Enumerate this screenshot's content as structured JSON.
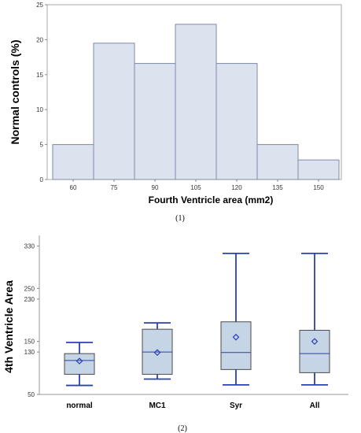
{
  "chart_data": [
    {
      "type": "bar",
      "caption": "(1)",
      "categories": [
        "60",
        "75",
        "90",
        "105",
        "120",
        "135",
        "150"
      ],
      "values": [
        5,
        19.5,
        16.6,
        22.2,
        16.6,
        5,
        2.8
      ],
      "xlabel": "Fourth Ventricle area (mm2)",
      "ylabel": "Normal controls  (%)",
      "ylim": [
        0,
        25
      ],
      "yticks": [
        "0",
        "5",
        "10",
        "15",
        "20",
        "25"
      ],
      "colors": {
        "fill": "#dde3ee",
        "stroke": "#7d8aa6",
        "plot_border": "#aaaaaa"
      }
    },
    {
      "type": "box",
      "caption": "(2)",
      "categories": [
        "normal",
        "MC1",
        "Syr",
        "All"
      ],
      "ylabel": "4th Ventricle Area",
      "ylim": [
        50,
        350
      ],
      "yticks": [
        "50",
        "130",
        "150",
        "230",
        "250",
        "330"
      ],
      "boxes": [
        {
          "category": "normal",
          "min": 67,
          "q1": 88,
          "median": 114,
          "mean": 113,
          "q3": 127,
          "max": 148
        },
        {
          "category": "MC1",
          "min": 79,
          "q1": 88,
          "median": 130,
          "mean": 129,
          "q3": 173,
          "max": 185
        },
        {
          "category": "Syr",
          "min": 68,
          "q1": 97,
          "median": 129,
          "mean": 158,
          "q3": 187,
          "max": 316
        },
        {
          "category": "All",
          "min": 68,
          "q1": 91,
          "median": 127,
          "mean": 150,
          "q3": 171,
          "max": 316
        }
      ],
      "colors": {
        "box_fill": "#c6d5e6",
        "box_stroke": "#4a4a4a",
        "whisker": "#2b3fb5",
        "median": "#2b3fb5",
        "mean_marker": "#2b3fb5"
      }
    }
  ]
}
